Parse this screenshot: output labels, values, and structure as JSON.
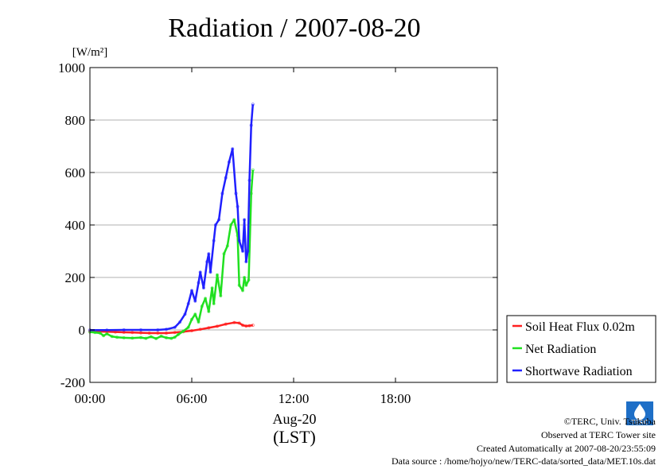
{
  "colors": {
    "soil": "#ff2020",
    "net": "#20e020",
    "short": "#2020ff"
  },
  "footer": {
    "copyright": "©TERC, Univ. Tsukuba",
    "observed": "Observed at TERC Tower site",
    "created": "Created Automatically at 2007-08-20/23:55:09",
    "source": "Data source : /home/hojyo/new/TERC-data/sorted_data/MET.10s.dat"
  },
  "logo": {
    "text": "TERC",
    "icon": "terc-drop-logo-icon"
  },
  "chart_data": {
    "type": "line",
    "title": "Radiation / 2007-08-20",
    "ylabel": "[W/m²]",
    "xlabel": "Aug-20",
    "xlabel2": "(LST)",
    "x_ticks": [
      "00:00",
      "06:00",
      "12:00",
      "18:00"
    ],
    "x_tick_hours": [
      0,
      6,
      12,
      18
    ],
    "xlim_hours": [
      0,
      24
    ],
    "y_ticks": [
      -200,
      0,
      200,
      400,
      600,
      800,
      1000
    ],
    "ylim": [
      -200,
      1000
    ],
    "grid": true,
    "legend_position": "bottom-right-outside",
    "series": [
      {
        "name": "Soil Heat Flux 0.02m",
        "color": "#ff2020",
        "x": [
          0,
          0.5,
          1,
          1.5,
          2,
          2.5,
          3,
          3.5,
          4,
          4.5,
          5,
          5.5,
          6,
          6.5,
          7,
          7.5,
          8,
          8.5,
          8.8,
          9,
          9.2,
          9.4,
          9.6
        ],
        "y": [
          -5,
          -6,
          -7,
          -8,
          -9,
          -10,
          -11,
          -12,
          -12,
          -12,
          -10,
          -7,
          -3,
          2,
          8,
          14,
          22,
          28,
          26,
          18,
          15,
          16,
          18
        ]
      },
      {
        "name": "Net Radiation",
        "color": "#20e020",
        "x": [
          0,
          0.3,
          0.6,
          0.8,
          1,
          1.3,
          1.6,
          2,
          2.5,
          3,
          3.3,
          3.6,
          3.9,
          4.2,
          4.5,
          4.8,
          5,
          5.2,
          5.5,
          5.8,
          6,
          6.2,
          6.4,
          6.6,
          6.8,
          7,
          7.2,
          7.3,
          7.5,
          7.7,
          7.9,
          8.1,
          8.3,
          8.5,
          8.7,
          8.8,
          9,
          9.1,
          9.2,
          9.35,
          9.5,
          9.6
        ],
        "y": [
          -8,
          -10,
          -12,
          -22,
          -15,
          -25,
          -28,
          -30,
          -31,
          -29,
          -32,
          -26,
          -33,
          -24,
          -30,
          -32,
          -28,
          -18,
          -5,
          10,
          40,
          60,
          30,
          90,
          120,
          70,
          160,
          100,
          210,
          130,
          290,
          320,
          400,
          420,
          360,
          170,
          150,
          200,
          170,
          190,
          520,
          610
        ]
      },
      {
        "name": "Shortwave Radiation",
        "color": "#2020ff",
        "x": [
          0,
          1,
          2,
          3,
          4,
          4.5,
          5,
          5.3,
          5.6,
          5.8,
          6,
          6.2,
          6.4,
          6.5,
          6.7,
          6.9,
          7,
          7.1,
          7.3,
          7.4,
          7.6,
          7.8,
          8,
          8.2,
          8.4,
          8.6,
          8.7,
          8.8,
          9,
          9.1,
          9.2,
          9.3,
          9.4,
          9.5,
          9.6
        ],
        "y": [
          -1,
          -1,
          0,
          0,
          0,
          2,
          10,
          30,
          60,
          100,
          150,
          110,
          180,
          220,
          160,
          260,
          290,
          220,
          340,
          400,
          420,
          520,
          580,
          640,
          690,
          520,
          470,
          340,
          300,
          420,
          260,
          300,
          570,
          780,
          860
        ]
      }
    ]
  }
}
